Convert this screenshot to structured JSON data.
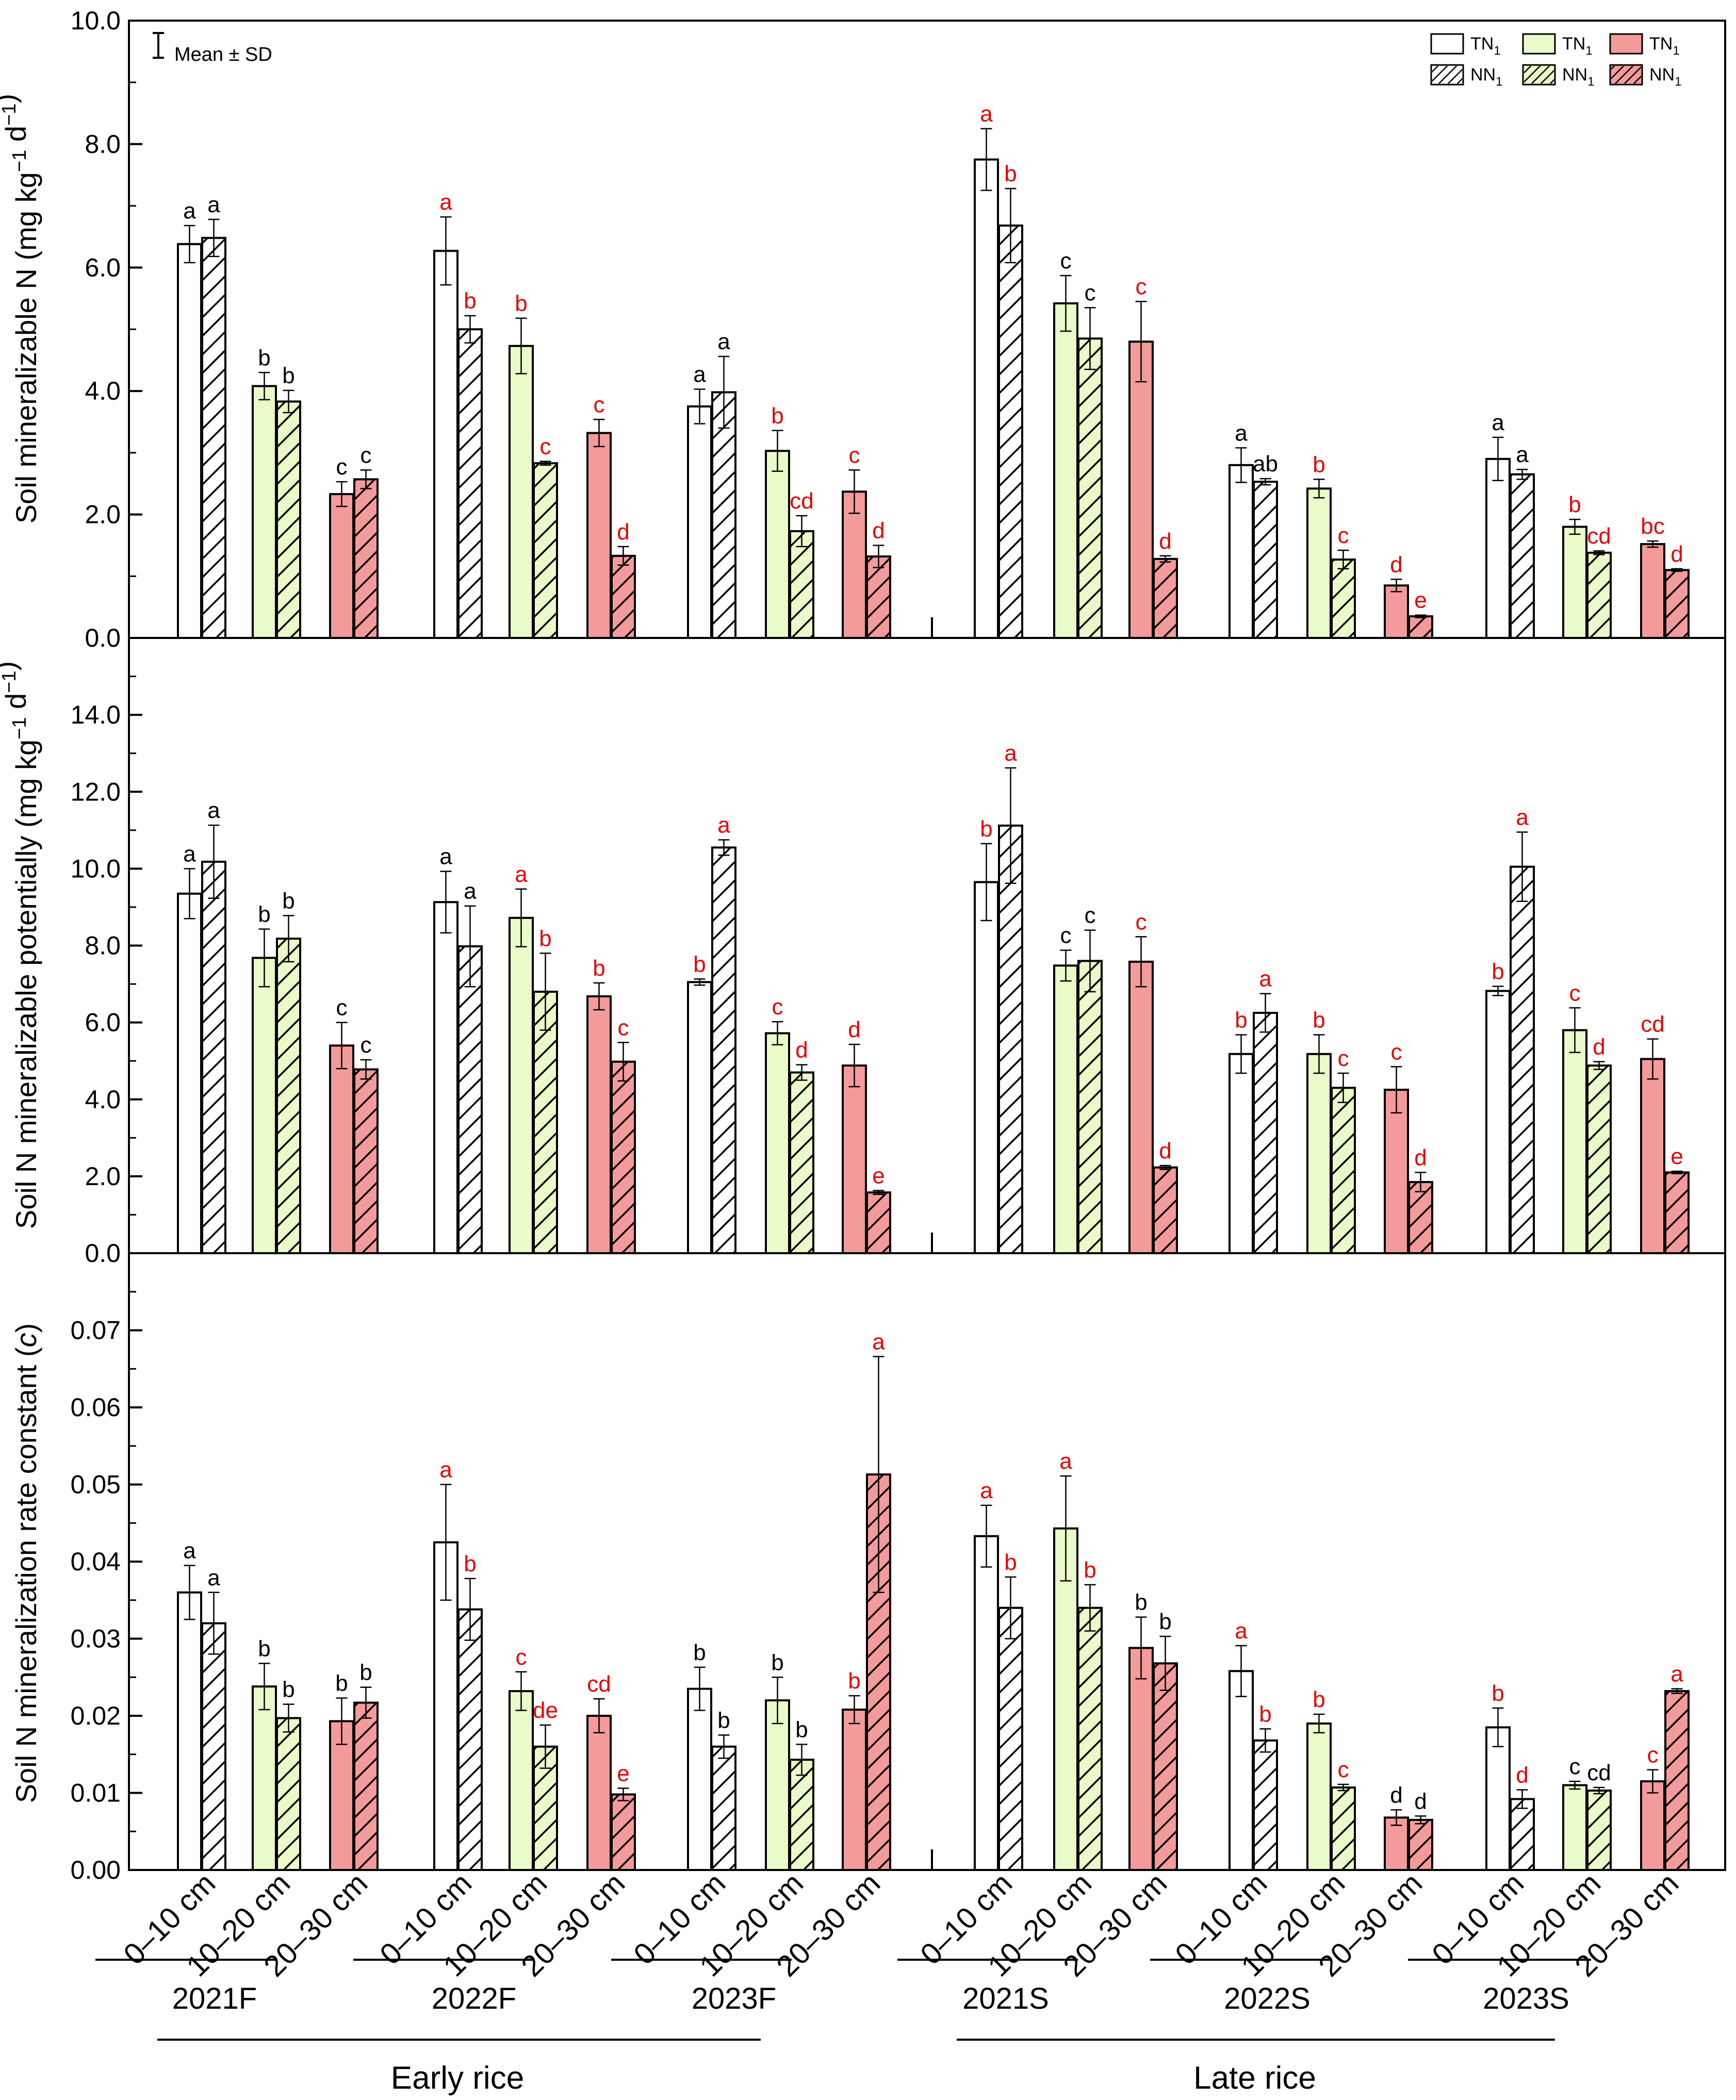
{
  "chart_data": [
    {
      "type": "bar",
      "panel": "top",
      "ylabel": "Soil mineralizable N (mg kg−1 d−1)",
      "ylim": [
        0,
        10
      ],
      "yticks": [
        0,
        2,
        4,
        6,
        8,
        10
      ],
      "tick_labels": [
        "0.0",
        "2.0",
        "4.0",
        "6.0",
        "8.0",
        "10.0"
      ],
      "series": [
        {
          "name": "TN1",
          "values": [
            6.38,
            4.08,
            2.33,
            6.27,
            4.73,
            3.32,
            3.75,
            3.03,
            2.37,
            7.75,
            5.42,
            4.8,
            2.8,
            2.42,
            0.85,
            2.9,
            1.8,
            1.52
          ],
          "errors": [
            0.3,
            0.22,
            0.2,
            0.55,
            0.45,
            0.22,
            0.28,
            0.33,
            0.35,
            0.5,
            0.45,
            0.65,
            0.28,
            0.15,
            0.1,
            0.35,
            0.12,
            0.05
          ],
          "letters": [
            "a",
            "b",
            "c",
            "a",
            "b",
            "c",
            "a",
            "b",
            "c",
            "a",
            "c",
            "c",
            "a",
            "b",
            "d",
            "a",
            "b",
            "bc"
          ]
        },
        {
          "name": "NN1",
          "values": [
            6.48,
            3.83,
            2.57,
            5.0,
            2.83,
            1.33,
            3.98,
            1.73,
            1.32,
            6.68,
            4.85,
            1.28,
            2.53,
            1.27,
            0.35,
            2.65,
            1.38,
            1.1
          ],
          "errors": [
            0.3,
            0.18,
            0.15,
            0.22,
            0.03,
            0.15,
            0.58,
            0.25,
            0.18,
            0.6,
            0.5,
            0.05,
            0.05,
            0.15,
            0.02,
            0.08,
            0.03,
            0.02
          ],
          "letters": [
            "a",
            "b",
            "c",
            "b",
            "c",
            "d",
            "a",
            "cd",
            "d",
            "b",
            "c",
            "d",
            "ab",
            "c",
            "e",
            "a",
            "cd",
            "d"
          ]
        }
      ],
      "letter_colors": [
        [
          "black",
          "black",
          "black",
          "red",
          "red",
          "red",
          "black",
          "red",
          "red",
          "red",
          "black",
          "red",
          "black",
          "red",
          "red",
          "black",
          "red",
          "red"
        ],
        [
          "black",
          "black",
          "black",
          "red",
          "red",
          "red",
          "black",
          "red",
          "red",
          "red",
          "black",
          "red",
          "black",
          "red",
          "red",
          "black",
          "red",
          "red"
        ]
      ],
      "legend": {
        "errorbar_label": "Mean ± SD",
        "entries": [
          {
            "label": "TN",
            "sub": "1",
            "color": "#ffffff",
            "hatch": false
          },
          {
            "label": "NN",
            "sub": "1",
            "color": "#ffffff",
            "hatch": true
          },
          {
            "label": "TN",
            "sub": "1",
            "color": "#e9fbc9",
            "hatch": false
          },
          {
            "label": "NN",
            "sub": "1",
            "color": "#e9fbc9",
            "hatch": true
          },
          {
            "label": "TN",
            "sub": "1",
            "color": "#f39b9b",
            "hatch": false
          },
          {
            "label": "NN",
            "sub": "1",
            "color": "#f39b9b",
            "hatch": true
          }
        ]
      }
    },
    {
      "type": "bar",
      "panel": "middle",
      "ylabel": "Soil N mineralizable potentially (mg kg−1 d−1)",
      "ylim": [
        0,
        16
      ],
      "yticks": [
        0,
        2,
        4,
        6,
        8,
        10,
        12,
        14
      ],
      "tick_labels": [
        "0.0",
        "2.0",
        "4.0",
        "6.0",
        "8.0",
        "10.0",
        "12.0",
        "14.0"
      ],
      "series": [
        {
          "name": "TN1",
          "values": [
            9.35,
            7.68,
            5.4,
            9.13,
            8.72,
            6.68,
            7.05,
            5.72,
            4.88,
            9.65,
            7.48,
            7.58,
            5.18,
            5.18,
            4.25,
            6.82,
            5.8,
            5.05
          ],
          "errors": [
            0.65,
            0.75,
            0.6,
            0.8,
            0.75,
            0.35,
            0.08,
            0.3,
            0.55,
            1.0,
            0.4,
            0.65,
            0.5,
            0.5,
            0.6,
            0.12,
            0.58,
            0.52
          ],
          "letters": [
            "a",
            "b",
            "c",
            "a",
            "a",
            "b",
            "b",
            "c",
            "d",
            "b",
            "c",
            "c",
            "b",
            "b",
            "c",
            "b",
            "c",
            "cd"
          ]
        },
        {
          "name": "NN1",
          "values": [
            10.18,
            8.18,
            4.78,
            7.98,
            6.8,
            4.98,
            10.55,
            4.7,
            1.58,
            11.12,
            7.6,
            2.23,
            6.25,
            4.3,
            1.85,
            10.05,
            4.88,
            2.1
          ],
          "errors": [
            0.95,
            0.6,
            0.25,
            1.05,
            1.0,
            0.5,
            0.2,
            0.2,
            0.05,
            1.5,
            0.8,
            0.05,
            0.5,
            0.38,
            0.25,
            0.9,
            0.1,
            0.03
          ],
          "letters": [
            "a",
            "b",
            "c",
            "a",
            "b",
            "c",
            "a",
            "d",
            "e",
            "a",
            "c",
            "d",
            "a",
            "c",
            "d",
            "a",
            "d",
            "e"
          ]
        }
      ],
      "letter_colors": [
        [
          "black",
          "black",
          "black",
          "black",
          "red",
          "red",
          "red",
          "red",
          "red",
          "red",
          "black",
          "red",
          "red",
          "red",
          "red",
          "red",
          "red",
          "red"
        ],
        [
          "black",
          "black",
          "black",
          "black",
          "red",
          "red",
          "red",
          "red",
          "red",
          "red",
          "black",
          "red",
          "red",
          "red",
          "red",
          "red",
          "red",
          "red"
        ]
      ]
    },
    {
      "type": "bar",
      "panel": "bottom",
      "ylabel": "Soil N mineralization rate constant (c)",
      "ylim": [
        0,
        0.08
      ],
      "yticks": [
        0,
        0.01,
        0.02,
        0.03,
        0.04,
        0.05,
        0.06,
        0.07
      ],
      "tick_labels": [
        "0.00",
        "0.01",
        "0.02",
        "0.03",
        "0.04",
        "0.05",
        "0.06",
        "0.07"
      ],
      "series": [
        {
          "name": "TN1",
          "values": [
            0.036,
            0.0238,
            0.0193,
            0.0425,
            0.0232,
            0.02,
            0.0235,
            0.022,
            0.0208,
            0.0433,
            0.0443,
            0.0288,
            0.0258,
            0.019,
            0.0068,
            0.0185,
            0.011,
            0.0115
          ],
          "errors": [
            0.0035,
            0.003,
            0.003,
            0.0075,
            0.0025,
            0.0022,
            0.0028,
            0.003,
            0.0018,
            0.004,
            0.0068,
            0.004,
            0.0033,
            0.0012,
            0.001,
            0.0025,
            0.0005,
            0.0015
          ],
          "letters": [
            "a",
            "b",
            "b",
            "a",
            "c",
            "cd",
            "b",
            "b",
            "b",
            "a",
            "a",
            "b",
            "a",
            "b",
            "d",
            "b",
            "c",
            "c"
          ]
        },
        {
          "name": "NN1",
          "values": [
            0.032,
            0.0197,
            0.0217,
            0.0338,
            0.016,
            0.0098,
            0.016,
            0.0143,
            0.0513,
            0.034,
            0.034,
            0.0268,
            0.0168,
            0.0107,
            0.0065,
            0.0092,
            0.0103,
            0.0232
          ],
          "errors": [
            0.004,
            0.0018,
            0.002,
            0.004,
            0.0028,
            0.0008,
            0.0015,
            0.002,
            0.0153,
            0.004,
            0.003,
            0.0035,
            0.0015,
            0.0004,
            0.0005,
            0.0012,
            0.0004,
            0.0003
          ],
          "letters": [
            "a",
            "b",
            "b",
            "b",
            "de",
            "e",
            "b",
            "b",
            "a",
            "b",
            "b",
            "b",
            "b",
            "c",
            "d",
            "d",
            "cd",
            "a"
          ]
        }
      ],
      "letter_colors": [
        [
          "black",
          "black",
          "black",
          "red",
          "red",
          "red",
          "black",
          "black",
          "red",
          "red",
          "red",
          "black",
          "red",
          "red",
          "black",
          "red",
          "black",
          "red"
        ],
        [
          "black",
          "black",
          "black",
          "red",
          "red",
          "red",
          "black",
          "black",
          "red",
          "red",
          "red",
          "black",
          "red",
          "red",
          "black",
          "red",
          "black",
          "red"
        ]
      ]
    }
  ],
  "x_axis": {
    "depth_labels": [
      "0–10 cm",
      "10–20 cm",
      "20–30 cm"
    ],
    "years": [
      "2021F",
      "2022F",
      "2023F",
      "2021S",
      "2022S",
      "2023S"
    ],
    "seasons": [
      "Early rice",
      "Late rice"
    ]
  },
  "colors": {
    "depth_fills": [
      "#ffffff",
      "#e9fbc9",
      "#f39b9b"
    ],
    "sig_red": "#e60000",
    "sig_black": "#000000",
    "axis": "#000000"
  }
}
